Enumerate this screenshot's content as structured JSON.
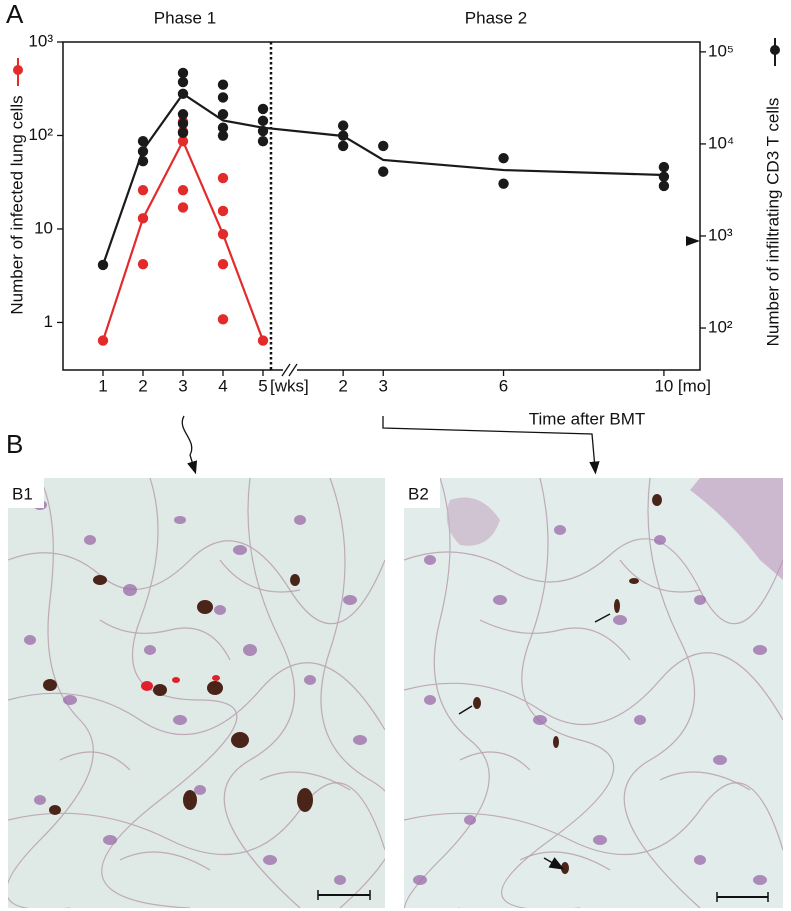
{
  "panel_a_label": "A",
  "panel_b_label": "B",
  "phase_labels": [
    "Phase 1",
    "Phase 2"
  ],
  "chart_data": {
    "type": "line",
    "ylabel": "Number of infected lung cells",
    "y2label": "Number of infiltrating CD3 T cells",
    "xlabel": "Time after BMT",
    "x_unit_labels": [
      "[wks]",
      "[mo]"
    ],
    "log": true,
    "y2log": true,
    "ylim": [
      0.31,
      1000
    ],
    "yticks": [
      1,
      10,
      {
        "value": 100,
        "label": "10²"
      },
      {
        "value": 1000,
        "label": "10³"
      }
    ],
    "y2lim": [
      35,
      128000
    ],
    "y2ticks": [
      {
        "value": 100,
        "label": "10²"
      },
      {
        "value": 1000,
        "label": "10³"
      },
      {
        "value": 10000,
        "label": "10⁴"
      },
      {
        "value": 100000,
        "label": "10⁵"
      }
    ],
    "xlim_weeks": [
      0,
      5.55
    ],
    "xticks_weeks": [
      1,
      2,
      3,
      4,
      5
    ],
    "xlim_months": [
      0.55,
      10.9
    ],
    "xticks_months": [
      2,
      3,
      6,
      10
    ],
    "series": [
      {
        "color": "#e32b2b",
        "axis": "y",
        "line": {
          "weeks": {
            "x": [
              1,
              2,
              3,
              4,
              5
            ],
            "values": [
              0.64,
              13,
              87,
              8.8,
              0.64
            ]
          }
        },
        "points": {
          "weeks": {
            "x": [
              1,
              2,
              2,
              2,
              3,
              3,
              3,
              3,
              3,
              4,
              4,
              4,
              4,
              4,
              5
            ],
            "values": [
              0.64,
              26,
              13,
              4.2,
              140,
              110,
              87,
              26,
              17,
              35,
              15.6,
              8.8,
              4.2,
              1.08,
              0.64
            ]
          }
        }
      },
      {
        "color": "#1a1a1a",
        "axis": "y2",
        "line": {
          "weeks": {
            "x": [
              1,
              2,
              3,
              4,
              5
            ],
            "values": [
              485,
              8600,
              35000,
              18000,
              15000
            ]
          },
          "months": {
            "x": [
              2,
              3,
              6,
              10
            ],
            "values": [
              12200,
              6700,
              5200,
              4600
            ]
          }
        },
        "points": {
          "weeks": {
            "x": [
              1,
              2,
              2,
              2,
              3,
              3,
              3,
              3,
              3,
              3,
              4,
              4,
              4,
              4,
              4,
              5,
              5,
              5,
              5
            ],
            "values": [
              485,
              10700,
              8300,
              6500,
              59000,
              47000,
              35000,
              21000,
              16600,
              13200,
              44000,
              32000,
              21000,
              15000,
              12300,
              24000,
              17800,
              13800,
              10700
            ]
          },
          "months": {
            "x": [
              2,
              2,
              2,
              3,
              3,
              6,
              6,
              10,
              10,
              10
            ],
            "values": [
              15800,
              12300,
              9500,
              9500,
              5000,
              7000,
              3700,
              5600,
              4400,
              3500
            ]
          }
        }
      }
    ]
  },
  "images": [
    {
      "label": "B1"
    },
    {
      "label": "B2"
    }
  ]
}
